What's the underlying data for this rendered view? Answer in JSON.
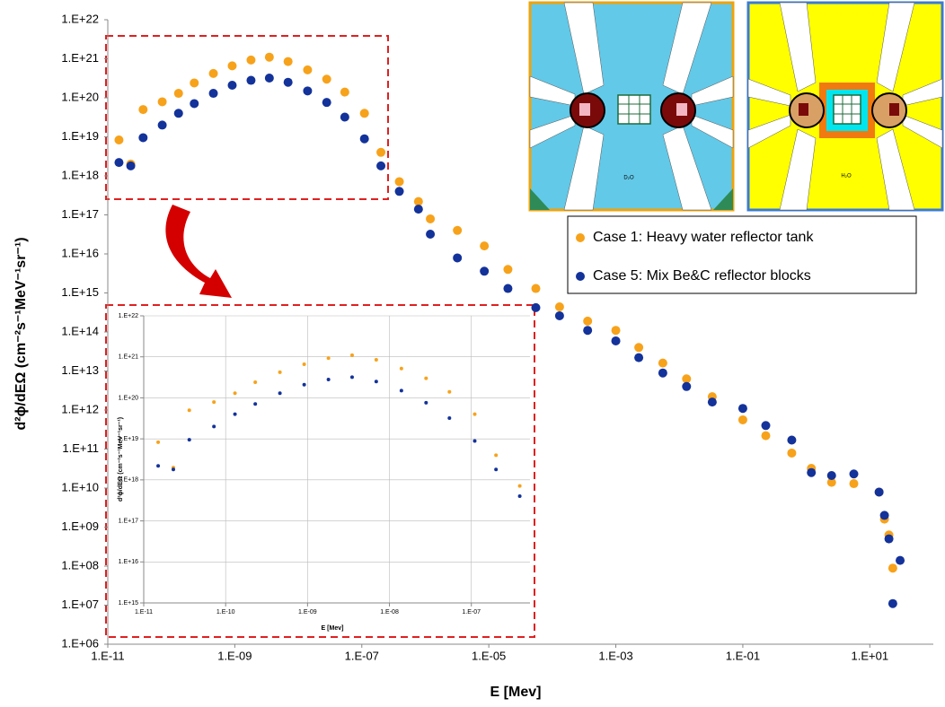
{
  "chart_data": [
    {
      "type": "scatter",
      "x_label": "E [Mev]",
      "y_label": "d²ϕ/dEΩ  (cm⁻²s⁻¹MeV⁻¹sr⁻¹)",
      "log_x": true,
      "log_y": true,
      "grid": false,
      "legend": "upper right",
      "x": [
        1.5e-11,
        2.3e-11,
        3.6e-11,
        7.2e-11,
        1.3e-10,
        2.3e-10,
        4.6e-10,
        9.1e-10,
        1.8e-09,
        3.5e-09,
        6.9e-09,
        1.4e-08,
        2.8e-08,
        5.4e-08,
        1.1e-07,
        2e-07,
        3.9e-07,
        7.8e-07,
        1.2e-06,
        3.2e-06,
        8.5e-06,
        2e-05,
        5.5e-05,
        0.00013,
        0.00036,
        0.001,
        0.0023,
        0.0055,
        0.013,
        0.033,
        0.1,
        0.23,
        0.59,
        1.2,
        2.5,
        5.6,
        14,
        17,
        20,
        23,
        30
      ],
      "series": [
        {
          "name": "Case 1: Heavy water reflector tank",
          "color": "#f7a21b",
          "values": [
            8.3e+18,
            2e+18,
            5e+19,
            7.9e+19,
            1.3e+20,
            2.4e+20,
            4.2e+20,
            6.6e+20,
            9.3e+20,
            1.1e+21,
            8.5e+20,
            5.2e+20,
            3e+20,
            1.4e+20,
            4e+19,
            4e+18,
            7.1e+17,
            2.2e+17,
            7.9e+16,
            4e+16,
            1.6e+16,
            4000000000000000.0,
            1300000000000000.0,
            440000000000000.0,
            190000000000000.0,
            110000000000000.0,
            40000000000000.0,
            16000000000000.0,
            6300000000000.0,
            2200000000000.0,
            560000000000.0,
            220000000000.0,
            79000000000.0,
            32000000000.0,
            14000000000.0,
            13000000000.0,
            7900000000.0,
            1600000000.0,
            630000000.0,
            89000000.0,
            null
          ]
        },
        {
          "name": "Case 5: Mix Be&C reflector blocks",
          "color": "#13329a",
          "values": [
            2.2e+18,
            1.8e+18,
            9.5e+18,
            2e+19,
            4e+19,
            7.1e+19,
            1.3e+20,
            2.1e+20,
            2.8e+20,
            3.2e+20,
            2.5e+20,
            1.5e+20,
            7.6e+19,
            3.2e+19,
            8.9e+18,
            1.8e+18,
            4e+17,
            1.4e+17,
            3.2e+16,
            7900000000000000.0,
            3600000000000000.0,
            1300000000000000.0,
            420000000000000.0,
            260000000000000.0,
            110000000000000.0,
            59000000000000.0,
            22000000000000.0,
            8900000000000.0,
            4000000000000.0,
            1600000000000.0,
            1100000000000.0,
            400000000000.0,
            170000000000.0,
            25000000000.0,
            21000000000.0,
            23000000000.0,
            7900000000.0,
            2000000000.0,
            500000000.0,
            11000000.0,
            140000000.0
          ]
        }
      ],
      "xlim": [
        1e-11,
        100
      ],
      "xticks": [
        {
          "value": 1e-11,
          "label": "1.E-11"
        },
        {
          "value": 1e-09,
          "label": "1.E-09"
        },
        {
          "value": 1e-07,
          "label": "1.E-07"
        },
        {
          "value": 1e-05,
          "label": "1.E-05"
        },
        {
          "value": 0.001,
          "label": "1.E-03"
        },
        {
          "value": 0.1,
          "label": "1.E-01"
        },
        {
          "value": 10,
          "label": "1.E+01"
        }
      ],
      "ylim": [
        1000000.0,
        1e+22
      ],
      "yticks": [
        {
          "value": 1000000.0,
          "label": "1.E+06"
        },
        {
          "value": 10000000.0,
          "label": "1.E+07"
        },
        {
          "value": 100000000.0,
          "label": "1.E+08"
        },
        {
          "value": 1000000000.0,
          "label": "1.E+09"
        },
        {
          "value": 10000000000.0,
          "label": "1.E+10"
        },
        {
          "value": 100000000000.0,
          "label": "1.E+11"
        },
        {
          "value": 1000000000000.0,
          "label": "1.E+12"
        },
        {
          "value": 10000000000000.0,
          "label": "1.E+13"
        },
        {
          "value": 100000000000000.0,
          "label": "1.E+14"
        },
        {
          "value": 1000000000000000.0,
          "label": "1.E+15"
        },
        {
          "value": 1e+16,
          "label": "1.E+16"
        },
        {
          "value": 1e+17,
          "label": "1.E+17"
        },
        {
          "value": 1e+18,
          "label": "1.E+18"
        },
        {
          "value": 1e+19,
          "label": "1.E+19"
        },
        {
          "value": 1e+20,
          "label": "1.E+20"
        },
        {
          "value": 1e+21,
          "label": "1.E+21"
        },
        {
          "value": 1e+22,
          "label": "1.E+22"
        }
      ]
    },
    {
      "type": "scatter",
      "x_label": "E [Mev]",
      "y_label": "d²ϕ/dEΩ (cm⁻²s⁻¹MeV⁻¹sr⁻¹)",
      "log_x": true,
      "log_y": true,
      "grid": true,
      "xlim": [
        1e-11,
        5.2e-07
      ],
      "xticks": [
        {
          "value": 1e-11,
          "label": "1.E-11"
        },
        {
          "value": 1e-10,
          "label": "1.E-10"
        },
        {
          "value": 1e-09,
          "label": "1.E-09"
        },
        {
          "value": 1e-08,
          "label": "1.E-08"
        },
        {
          "value": 1e-07,
          "label": "1.E-07"
        }
      ],
      "ylim": [
        1000000000000000.0,
        1e+22
      ],
      "yticks": [
        {
          "value": 1000000000000000.0,
          "label": "1.E+15"
        },
        {
          "value": 1e+16,
          "label": "1.E+16"
        },
        {
          "value": 1e+17,
          "label": "1.E+17"
        },
        {
          "value": 1e+18,
          "label": "1.E+18"
        },
        {
          "value": 1e+19,
          "label": "1.E+19"
        },
        {
          "value": 1e+20,
          "label": "1.E+20"
        },
        {
          "value": 1e+21,
          "label": "1.E+21"
        },
        {
          "value": 1e+22,
          "label": "1.E+22"
        }
      ]
    }
  ],
  "diagram_labels": [
    "D₂O",
    "H₂O"
  ]
}
